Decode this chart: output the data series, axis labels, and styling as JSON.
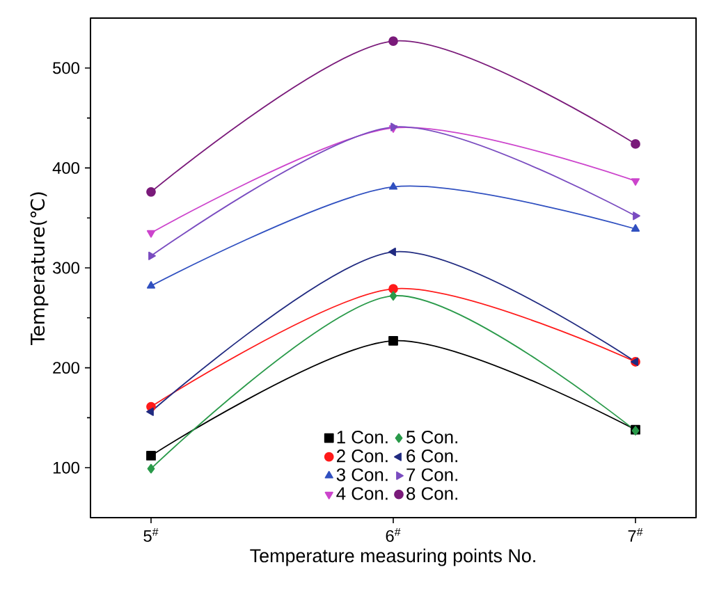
{
  "chart_data": {
    "type": "line",
    "xlabel": "Temperature measuring points No.",
    "ylabel": "Temperature(℃)",
    "categories": [
      "5$^{#}$",
      "6$^{#}$",
      "7$^{#}$"
    ],
    "ylim": [
      50,
      550
    ],
    "yticks": [
      100,
      200,
      300,
      400,
      500
    ],
    "grid": false,
    "legend": "bottom",
    "line_style": "solid",
    "series": [
      {
        "name": "1 Con.",
        "color": "#000000",
        "marker": "square",
        "values": [
          112,
          227,
          138
        ]
      },
      {
        "name": "2 Con.",
        "color": "#ff1a1a",
        "marker": "circle",
        "values": [
          161,
          279,
          206
        ]
      },
      {
        "name": "3 Con.",
        "color": "#3050c0",
        "marker": "triangle",
        "values": [
          282,
          381,
          339
        ]
      },
      {
        "name": "4 Con.",
        "color": "#cc44cc",
        "marker": "triangle-down",
        "values": [
          335,
          440,
          387
        ]
      },
      {
        "name": "5 Con.",
        "color": "#2a9a4a",
        "marker": "diamond",
        "values": [
          99,
          272,
          137
        ]
      },
      {
        "name": "6 Con.",
        "color": "#202a80",
        "marker": "triangle-left",
        "values": [
          156,
          316,
          206
        ]
      },
      {
        "name": "7 Con.",
        "color": "#7a4cc0",
        "marker": "triangle-right",
        "values": [
          312,
          441,
          352
        ]
      },
      {
        "name": "8 Con.",
        "color": "#7a1a7a",
        "marker": "circle",
        "values": [
          376,
          527,
          424
        ]
      }
    ]
  }
}
